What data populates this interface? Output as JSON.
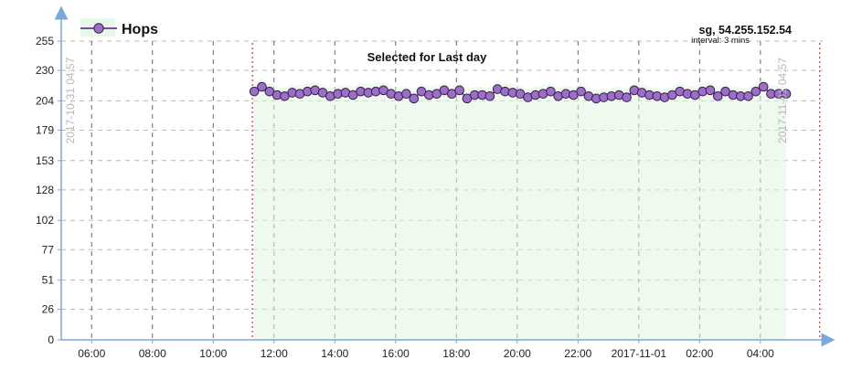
{
  "legend": {
    "label": "Hops",
    "position": "top-left"
  },
  "header": {
    "host": "sg, 54.255.152.54",
    "interval": "interval: 3 mins"
  },
  "annotation": {
    "selected_text": "Selected for Last day",
    "left_marker_label": "2017-10-31 04:57",
    "right_marker_label": "2017-11-01 04:57"
  },
  "colors": {
    "series_line": "#7b4fa0",
    "marker_fill": "#9b6fc8",
    "marker_stroke": "#3a2050",
    "axis": "#7aa7e0",
    "grid": "#b8b8b8",
    "selection_marker": "#d83a3a",
    "shadow_fill": "#dff5df",
    "side_label": "#b7b7b7"
  },
  "chart_data": {
    "type": "line",
    "title": "",
    "xlabel": "",
    "ylabel": "",
    "grid": true,
    "legend_position": "top-left",
    "ylim": [
      0,
      255
    ],
    "yticks": [
      0,
      26,
      51,
      77,
      102,
      128,
      153,
      179,
      204,
      230,
      255
    ],
    "xrange_hours": [
      5.0,
      30.05
    ],
    "xticks": [
      {
        "hour": 6,
        "label": "06:00"
      },
      {
        "hour": 8,
        "label": "08:00"
      },
      {
        "hour": 10,
        "label": "10:00"
      },
      {
        "hour": 12,
        "label": "12:00"
      },
      {
        "hour": 14,
        "label": "14:00"
      },
      {
        "hour": 16,
        "label": "16:00"
      },
      {
        "hour": 18,
        "label": "18:00"
      },
      {
        "hour": 20,
        "label": "20:00"
      },
      {
        "hour": 22,
        "label": "22:00"
      },
      {
        "hour": 24,
        "label": "2017-11-01"
      },
      {
        "hour": 26,
        "label": "02:00"
      },
      {
        "hour": 28,
        "label": "04:00"
      }
    ],
    "selection_hours": [
      11.29,
      29.95
    ],
    "series": [
      {
        "name": "Hops",
        "x": [
          11.35,
          11.6,
          11.85,
          12.1,
          12.35,
          12.6,
          12.85,
          13.1,
          13.35,
          13.6,
          13.85,
          14.1,
          14.35,
          14.6,
          14.85,
          15.1,
          15.35,
          15.6,
          15.85,
          16.1,
          16.35,
          16.6,
          16.85,
          17.1,
          17.35,
          17.6,
          17.85,
          18.1,
          18.35,
          18.6,
          18.85,
          19.1,
          19.35,
          19.6,
          19.85,
          20.1,
          20.35,
          20.6,
          20.85,
          21.1,
          21.35,
          21.6,
          21.85,
          22.1,
          22.35,
          22.6,
          22.85,
          23.1,
          23.35,
          23.6,
          23.85,
          24.1,
          24.35,
          24.6,
          24.85,
          25.1,
          25.35,
          25.6,
          25.85,
          26.1,
          26.35,
          26.6,
          26.85,
          27.1,
          27.35,
          27.6,
          27.85,
          28.1,
          28.35,
          28.6,
          28.85
        ],
        "y": [
          212,
          216,
          212,
          209,
          208,
          211,
          210,
          212,
          213,
          211,
          208,
          210,
          211,
          209,
          212,
          211,
          212,
          213,
          210,
          208,
          210,
          206,
          212,
          209,
          210,
          213,
          210,
          213,
          206,
          209,
          209,
          208,
          214,
          212,
          211,
          210,
          207,
          209,
          210,
          212,
          208,
          210,
          209,
          212,
          208,
          206,
          207,
          208,
          209,
          207,
          213,
          211,
          209,
          208,
          207,
          209,
          212,
          210,
          209,
          212,
          213,
          208,
          212,
          209,
          208,
          208,
          212,
          216,
          210,
          210,
          210
        ]
      }
    ]
  }
}
